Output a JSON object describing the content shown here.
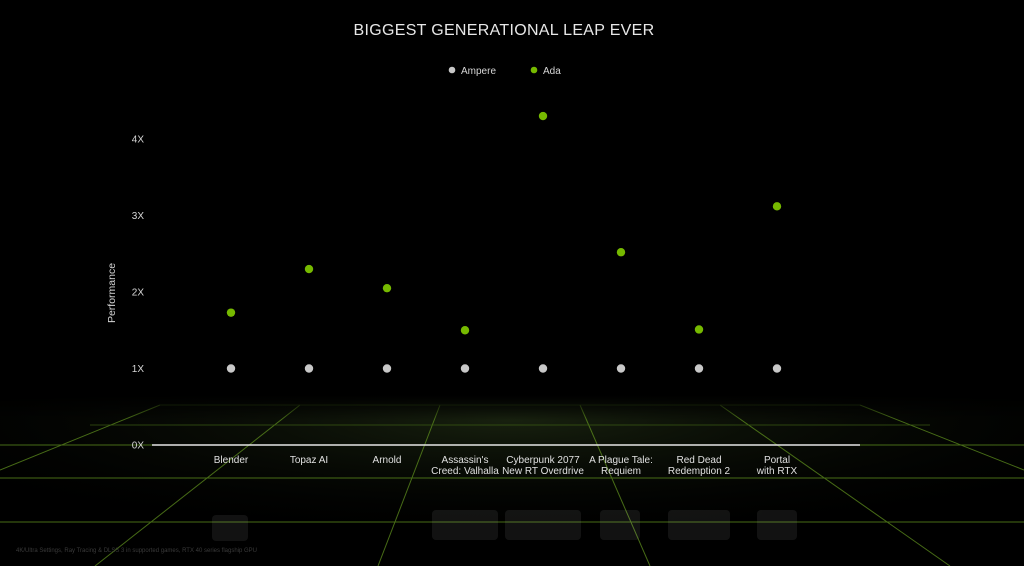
{
  "chart_data": {
    "type": "scatter",
    "title": "BIGGEST GENERATIONAL LEAP EVER",
    "ylabel": "Performance",
    "xlabel": "",
    "ylim": [
      0,
      4.4
    ],
    "y_ticks": [
      {
        "value": 0,
        "label": "0X"
      },
      {
        "value": 1,
        "label": "1X"
      },
      {
        "value": 2,
        "label": "2X"
      },
      {
        "value": 3,
        "label": "3X"
      },
      {
        "value": 4,
        "label": "4X"
      }
    ],
    "legend": {
      "placement": "top-center"
    },
    "categories": [
      [
        "Blender"
      ],
      [
        "Topaz AI"
      ],
      [
        "Arnold"
      ],
      [
        "Assassin's",
        "Creed: Valhalla"
      ],
      [
        "Cyberpunk 2077",
        "New RT Overdrive"
      ],
      [
        "A Plague Tale:",
        "Requiem"
      ],
      [
        "Red Dead",
        "Redemption 2"
      ],
      [
        "Portal",
        "with RTX"
      ]
    ],
    "series": [
      {
        "name": "Ampere",
        "color": "#c8c8c8",
        "values": [
          1,
          1,
          1,
          1,
          1,
          1,
          1,
          1
        ]
      },
      {
        "name": "Ada",
        "color": "#76b900",
        "values": [
          1.73,
          2.3,
          2.05,
          1.5,
          4.3,
          2.52,
          1.51,
          3.12
        ]
      }
    ],
    "footnote": "4K/Ultra Settings, Ray Tracing & DLSS 3 in supported games, RTX 40 series flagship GPU"
  }
}
